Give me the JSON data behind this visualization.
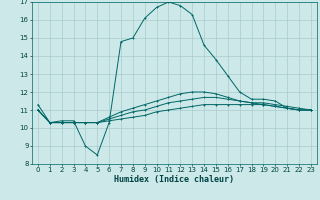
{
  "xlabel": "Humidex (Indice chaleur)",
  "bg_color": "#cce8e8",
  "grid_color": "#aacccc",
  "line_color": "#006666",
  "xlim": [
    -0.5,
    23.5
  ],
  "ylim": [
    8,
    17
  ],
  "xticks": [
    0,
    1,
    2,
    3,
    4,
    5,
    6,
    7,
    8,
    9,
    10,
    11,
    12,
    13,
    14,
    15,
    16,
    17,
    18,
    19,
    20,
    21,
    22,
    23
  ],
  "yticks": [
    8,
    9,
    10,
    11,
    12,
    13,
    14,
    15,
    16,
    17
  ],
  "line1_x": [
    0,
    1,
    2,
    3,
    4,
    5,
    6,
    7,
    8,
    9,
    10,
    11,
    12,
    13,
    14,
    15,
    16,
    17,
    18,
    19,
    20,
    21,
    22,
    23
  ],
  "line1_y": [
    11.3,
    10.3,
    10.4,
    10.4,
    9.0,
    8.5,
    10.3,
    14.8,
    15.0,
    16.1,
    16.7,
    17.0,
    16.8,
    16.3,
    14.6,
    13.8,
    12.9,
    12.0,
    11.6,
    11.6,
    11.5,
    11.1,
    11.0,
    11.0
  ],
  "line2_x": [
    0,
    1,
    2,
    3,
    4,
    5,
    6,
    7,
    8,
    9,
    10,
    11,
    12,
    13,
    14,
    15,
    16,
    17,
    18,
    19,
    20,
    21,
    22,
    23
  ],
  "line2_y": [
    11.0,
    10.3,
    10.3,
    10.3,
    10.3,
    10.3,
    10.4,
    10.5,
    10.6,
    10.7,
    10.9,
    11.0,
    11.1,
    11.2,
    11.3,
    11.3,
    11.3,
    11.3,
    11.3,
    11.3,
    11.2,
    11.1,
    11.0,
    11.0
  ],
  "line3_x": [
    0,
    1,
    2,
    3,
    4,
    5,
    6,
    7,
    8,
    9,
    10,
    11,
    12,
    13,
    14,
    15,
    16,
    17,
    18,
    19,
    20,
    21,
    22,
    23
  ],
  "line3_y": [
    11.0,
    10.3,
    10.3,
    10.3,
    10.3,
    10.3,
    10.5,
    10.7,
    10.9,
    11.0,
    11.2,
    11.4,
    11.5,
    11.6,
    11.7,
    11.7,
    11.6,
    11.5,
    11.4,
    11.4,
    11.3,
    11.2,
    11.1,
    11.0
  ],
  "line4_x": [
    0,
    1,
    2,
    3,
    4,
    5,
    6,
    7,
    8,
    9,
    10,
    11,
    12,
    13,
    14,
    15,
    16,
    17,
    18,
    19,
    20,
    21,
    22,
    23
  ],
  "line4_y": [
    11.0,
    10.3,
    10.3,
    10.3,
    10.3,
    10.3,
    10.6,
    10.9,
    11.1,
    11.3,
    11.5,
    11.7,
    11.9,
    12.0,
    12.0,
    11.9,
    11.7,
    11.5,
    11.4,
    11.3,
    11.2,
    11.1,
    11.0,
    11.0
  ]
}
